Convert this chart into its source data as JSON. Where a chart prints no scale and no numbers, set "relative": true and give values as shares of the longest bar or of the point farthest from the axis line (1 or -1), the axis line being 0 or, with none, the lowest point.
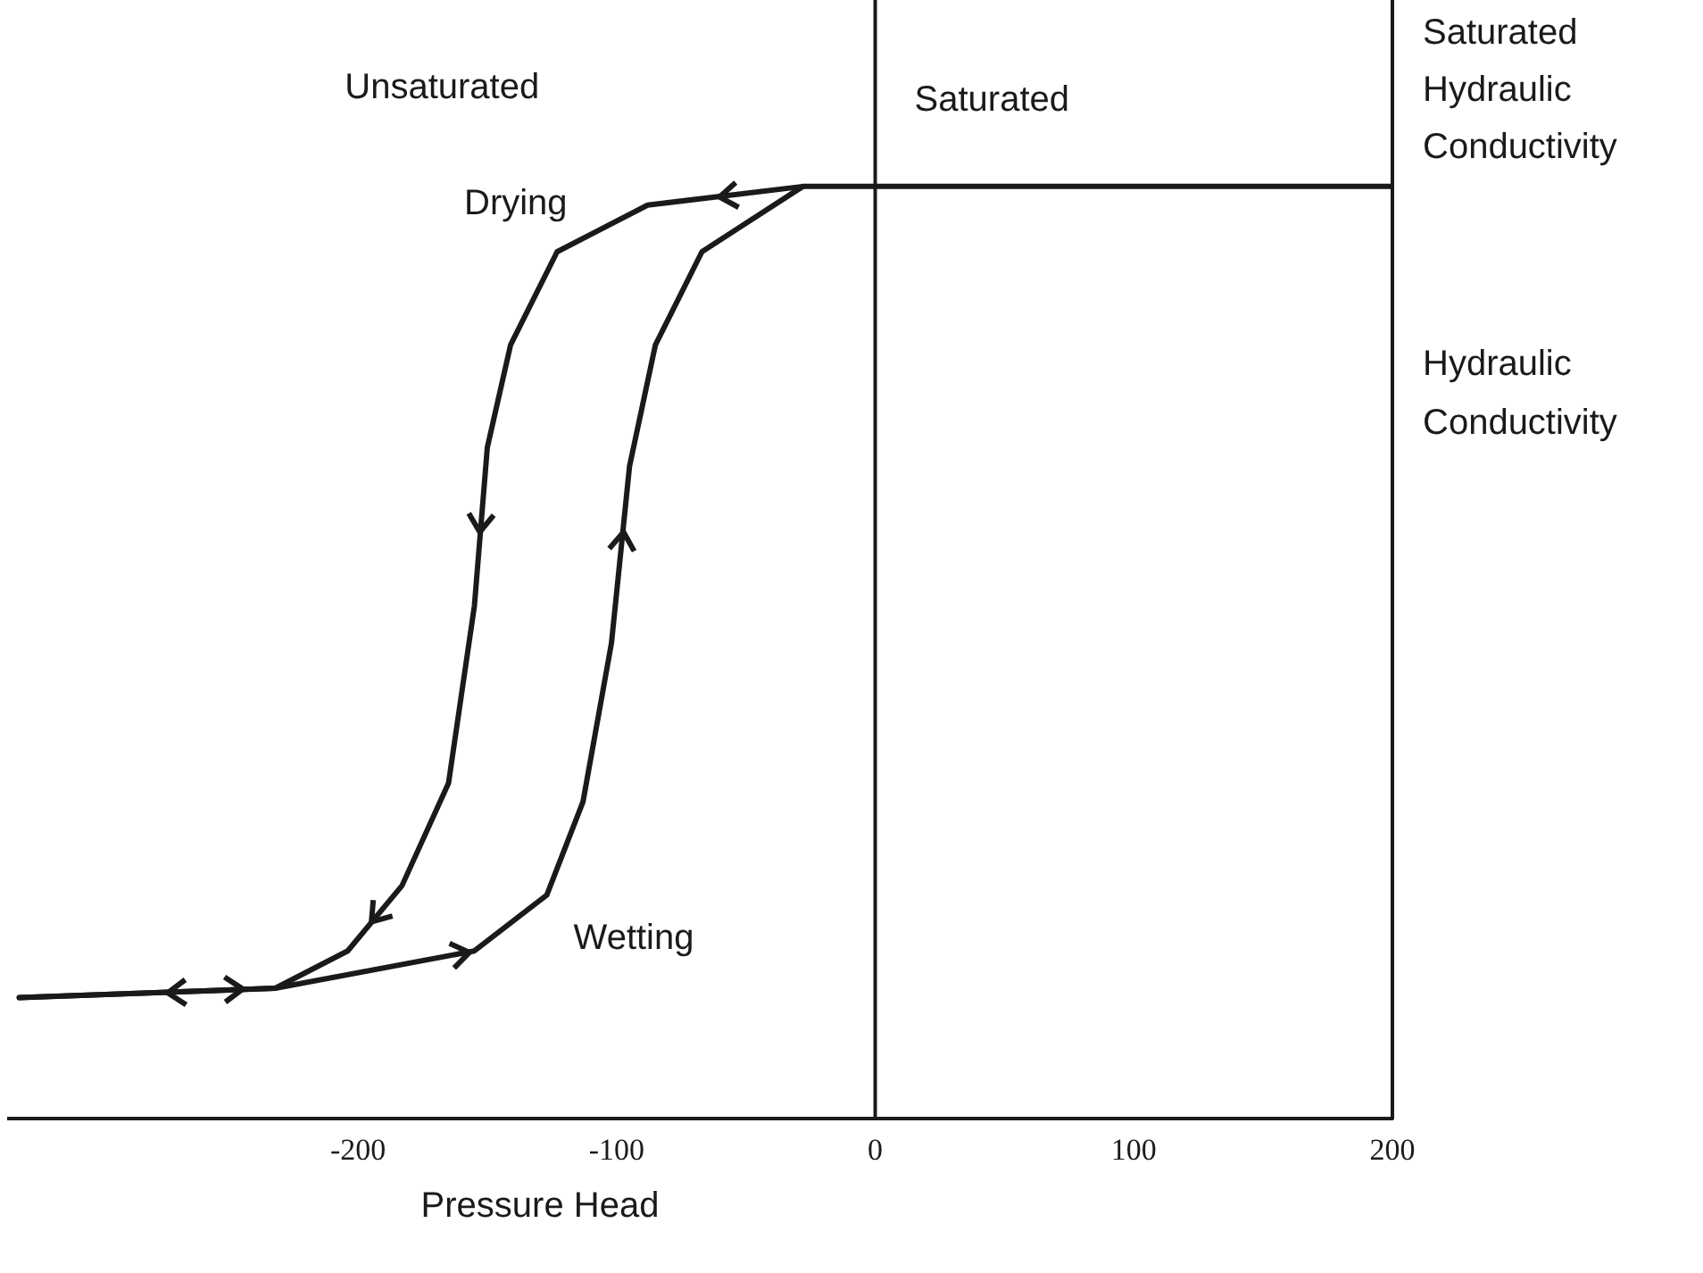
{
  "chart_data": {
    "type": "line",
    "relative": true,
    "xlabel": "Pressure Head",
    "ylabel": "Hydraulic Conductivity",
    "xlim": [
      -335,
      200
    ],
    "xticks": [
      -200,
      -100,
      0,
      100,
      200
    ],
    "grid": false,
    "legend": false,
    "marker": "none",
    "series": [
      {
        "name": "Drying",
        "color": "#1a1a1a",
        "x": [
          -28,
          -88,
          -123,
          -141,
          -150,
          -155,
          -165,
          -183,
          -204,
          -232,
          -331
        ],
        "values": [
          1,
          0.98,
          0.93,
          0.83,
          0.72,
          0.55,
          0.36,
          0.25,
          0.18,
          0.14,
          0.13
        ]
      },
      {
        "name": "Wetting",
        "color": "#1a1a1a",
        "x": [
          -331,
          -232,
          -155,
          -127,
          -113,
          -102,
          -95,
          -85,
          -67,
          -28,
          200
        ],
        "values": [
          0.13,
          0.14,
          0.18,
          0.24,
          0.34,
          0.51,
          0.7,
          0.83,
          0.93,
          1,
          1
        ]
      }
    ],
    "ref_lines": [
      {
        "axis": "x",
        "value": 0
      }
    ],
    "annotations": [
      "Unsaturated",
      "Saturated",
      {
        "text": "Saturated Hydraulic Conductivity",
        "x": 200,
        "y": 1
      }
    ]
  }
}
